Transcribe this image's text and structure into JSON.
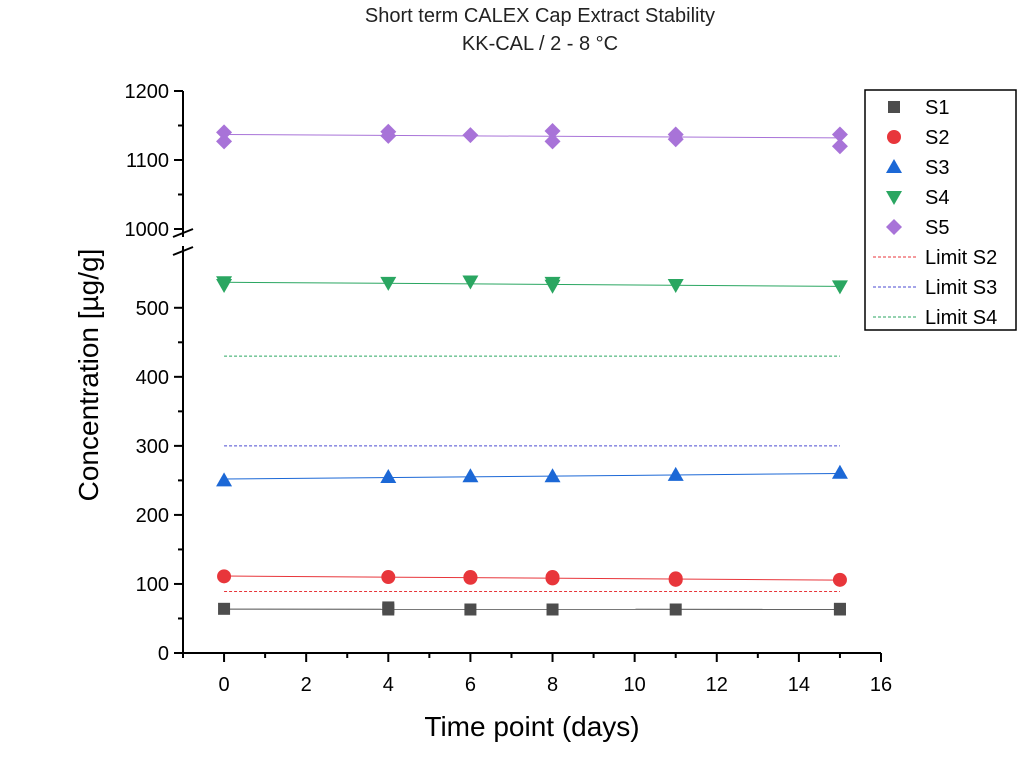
{
  "chart_data": {
    "type": "scatter",
    "title": "Short term CALEX Cap Extract Stability",
    "subtitle": "KK-CAL / 2 - 8 °C",
    "xlabel": "Time point (days)",
    "ylabel": "Concentration [µg/g]",
    "xlim": [
      -1,
      16
    ],
    "x_ticks": [
      0,
      2,
      4,
      6,
      8,
      10,
      12,
      14,
      16
    ],
    "y_segments": [
      {
        "range": [
          0,
          575
        ],
        "ticks": [
          0,
          100,
          200,
          300,
          400,
          500
        ]
      },
      {
        "range": [
          1000,
          1200
        ],
        "ticks": [
          1000,
          1100,
          1200
        ]
      }
    ],
    "axis_break": "between 575 and 1000",
    "grid": false,
    "legend_position": "top-right",
    "series": [
      {
        "name": "S1",
        "marker": "square",
        "color": "#4d4d4d",
        "points": [
          [
            0,
            64
          ],
          [
            4,
            63
          ],
          [
            4,
            66
          ],
          [
            6,
            63
          ],
          [
            8,
            63
          ],
          [
            11,
            63
          ],
          [
            15,
            63
          ],
          [
            15,
            64
          ]
        ],
        "trend": [
          [
            0,
            63.5
          ],
          [
            15,
            63.2
          ]
        ]
      },
      {
        "name": "S2",
        "marker": "circle",
        "color": "#e8363b",
        "points": [
          [
            0,
            111
          ],
          [
            4,
            110
          ],
          [
            6,
            109
          ],
          [
            6,
            110
          ],
          [
            8,
            108
          ],
          [
            8,
            110
          ],
          [
            11,
            106
          ],
          [
            11,
            108
          ],
          [
            15,
            106
          ]
        ],
        "trend": [
          [
            0,
            111.5
          ],
          [
            15,
            105.5
          ]
        ]
      },
      {
        "name": "S3",
        "marker": "triangle-up",
        "color": "#1c68d6",
        "points": [
          [
            0,
            250
          ],
          [
            4,
            255
          ],
          [
            6,
            256
          ],
          [
            8,
            256
          ],
          [
            11,
            258
          ],
          [
            15,
            261
          ]
        ],
        "trend": [
          [
            0,
            252
          ],
          [
            15,
            260
          ]
        ]
      },
      {
        "name": "S4",
        "marker": "triangle-down",
        "color": "#2aa661",
        "points": [
          [
            0,
            537
          ],
          [
            0,
            533
          ],
          [
            4,
            536
          ],
          [
            6,
            538
          ],
          [
            8,
            536
          ],
          [
            8,
            532
          ],
          [
            11,
            533
          ],
          [
            15,
            531
          ]
        ],
        "trend": [
          [
            0,
            537
          ],
          [
            15,
            531
          ]
        ]
      },
      {
        "name": "S5",
        "marker": "diamond",
        "color": "#a873d8",
        "points": [
          [
            0,
            1140
          ],
          [
            0,
            1127
          ],
          [
            4,
            1141
          ],
          [
            4,
            1135
          ],
          [
            6,
            1136
          ],
          [
            8,
            1142
          ],
          [
            8,
            1127
          ],
          [
            11,
            1137
          ],
          [
            11,
            1130
          ],
          [
            15,
            1137
          ],
          [
            15,
            1120
          ]
        ],
        "trend": [
          [
            0,
            1137
          ],
          [
            15,
            1132
          ]
        ]
      }
    ],
    "limits": [
      {
        "name": "Limit S2",
        "value": 89,
        "color": "#e8363b",
        "range": [
          0,
          15
        ]
      },
      {
        "name": "Limit S3",
        "value": 300,
        "color": "#4a4ad0",
        "range": [
          0,
          15
        ]
      },
      {
        "name": "Limit S4",
        "value": 430,
        "color": "#2aa661",
        "range": [
          0,
          15
        ]
      }
    ]
  }
}
